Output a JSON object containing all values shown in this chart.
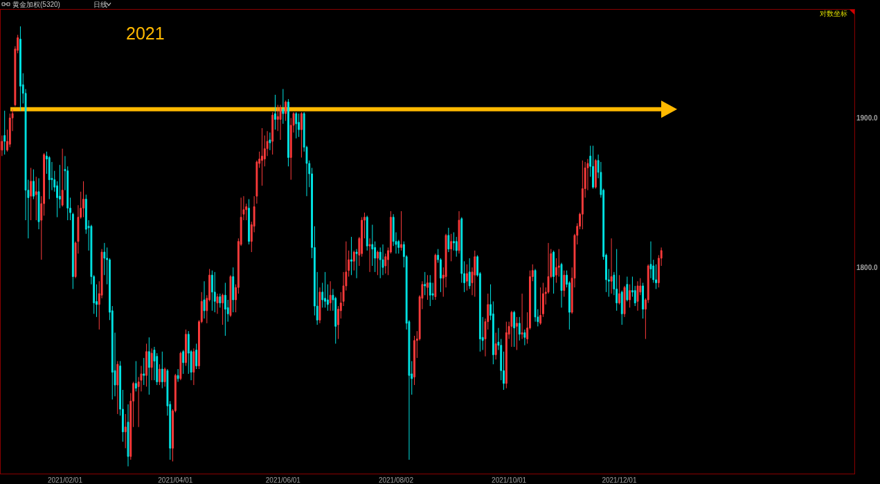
{
  "chart_data": {
    "type": "candlestick",
    "title": "黄金加权(5320)",
    "subtitle": "日线",
    "annotations": [
      "2021",
      "对数坐标"
    ],
    "log": true,
    "ylim": [
      1670.6,
      1975.9
    ],
    "yticks": [
      {
        "value": 1800,
        "label": "1800.0"
      },
      {
        "value": 1900,
        "label": "1900.0"
      }
    ],
    "ref_lines": [
      {
        "axis": "y",
        "value": 1906,
        "color": "#ffb900"
      }
    ],
    "categories": [
      null,
      null,
      null,
      null,
      null,
      null,
      null,
      null,
      null,
      null,
      null,
      null,
      null,
      null,
      null,
      null,
      null,
      null,
      null,
      null,
      null,
      null,
      null,
      null,
      "2021/02/01",
      null,
      null,
      null,
      null,
      null,
      null,
      null,
      null,
      null,
      null,
      null,
      null,
      null,
      null,
      null,
      null,
      null,
      null,
      null,
      null,
      null,
      null,
      null,
      null,
      null,
      null,
      null,
      null,
      null,
      null,
      null,
      null,
      null,
      null,
      null,
      null,
      null,
      null,
      null,
      null,
      null,
      "2021/04/01",
      null,
      null,
      null,
      null,
      null,
      null,
      null,
      null,
      null,
      null,
      null,
      null,
      null,
      null,
      null,
      null,
      null,
      null,
      null,
      null,
      null,
      null,
      null,
      null,
      null,
      null,
      null,
      null,
      null,
      null,
      null,
      null,
      null,
      null,
      null,
      null,
      null,
      null,
      null,
      null,
      "2021/06/01",
      null,
      null,
      null,
      null,
      null,
      null,
      null,
      null,
      null,
      null,
      null,
      null,
      null,
      null,
      null,
      null,
      null,
      null,
      null,
      null,
      null,
      null,
      null,
      null,
      null,
      null,
      null,
      null,
      null,
      null,
      null,
      null,
      null,
      null,
      null,
      null,
      null,
      null,
      null,
      null,
      null,
      null,
      "2021/08/02",
      null,
      null,
      null,
      null,
      null,
      null,
      null,
      null,
      null,
      null,
      null,
      null,
      null,
      null,
      null,
      null,
      null,
      null,
      null,
      null,
      null,
      null,
      null,
      null,
      null,
      null,
      null,
      null,
      null,
      null,
      null,
      null,
      null,
      null,
      null,
      null,
      null,
      null,
      null,
      null,
      null,
      null,
      "2021/10/01",
      null,
      null,
      null,
      null,
      null,
      null,
      null,
      null,
      null,
      null,
      null,
      null,
      null,
      null,
      null,
      null,
      null,
      null,
      null,
      null,
      null,
      null,
      null,
      null,
      null,
      null,
      null,
      null,
      null,
      null,
      null,
      null,
      null,
      null,
      null,
      null,
      null,
      null,
      null,
      null,
      null,
      "2021/12/01",
      null,
      null,
      null,
      null,
      null,
      null,
      null,
      null,
      null,
      null,
      null,
      null,
      null,
      null,
      null,
      null,
      null,
      null,
      null,
      null,
      null,
      null,
      null,
      null,
      null,
      null,
      null,
      null,
      null,
      null,
      null,
      null,
      null,
      null,
      null,
      null,
      null,
      null,
      null,
      null,
      null,
      null,
      null,
      null,
      null,
      null,
      null,
      null,
      null,
      null,
      null,
      null,
      null,
      null,
      null,
      null,
      null,
      null,
      null,
      null,
      null,
      null,
      null,
      null,
      null,
      null,
      null,
      null,
      null,
      null,
      null,
      null,
      null,
      null,
      null,
      null,
      null,
      null,
      null,
      null,
      null,
      null,
      null,
      null,
      null,
      null,
      null,
      null,
      null
    ],
    "ohlc": [
      [
        1878,
        1888,
        1874,
        1884
      ],
      [
        1888,
        1905,
        1875,
        1884
      ],
      [
        1878,
        1892,
        1877,
        1884
      ],
      [
        1882,
        1903,
        1880,
        1900
      ],
      [
        1900,
        1906,
        1891,
        1903
      ],
      [
        1909,
        1950,
        1908,
        1948
      ],
      [
        1947,
        1958,
        1945,
        1956
      ],
      [
        1955,
        1964,
        1905,
        1922
      ],
      [
        1923,
        1931,
        1910,
        1917
      ],
      [
        1917,
        1920,
        1831,
        1851
      ],
      [
        1851,
        1858,
        1819,
        1846
      ],
      [
        1847,
        1866,
        1831,
        1857
      ],
      [
        1857,
        1865,
        1845,
        1847
      ],
      [
        1848,
        1860,
        1831,
        1850
      ],
      [
        1850,
        1859,
        1825,
        1830
      ],
      [
        1831,
        1847,
        1805,
        1842
      ],
      [
        1842,
        1876,
        1834,
        1875
      ],
      [
        1874,
        1877,
        1862,
        1872
      ],
      [
        1873,
        1874,
        1845,
        1858
      ],
      [
        1859,
        1870,
        1851,
        1858
      ],
      [
        1858,
        1864,
        1850,
        1853
      ],
      [
        1854,
        1857,
        1833,
        1846
      ],
      [
        1847,
        1868,
        1839,
        1845
      ],
      [
        1841,
        1879,
        1840,
        1851
      ],
      [
        1865,
        1874,
        1851,
        1864
      ],
      [
        1864,
        1867,
        1831,
        1839
      ],
      [
        1839,
        1846,
        1831,
        1836
      ],
      [
        1835,
        1836,
        1786,
        1794
      ],
      [
        1794,
        1817,
        1793,
        1816
      ],
      [
        1817,
        1841,
        1809,
        1833
      ],
      [
        1833,
        1850,
        1832,
        1839
      ],
      [
        1839,
        1857,
        1833,
        1845
      ],
      [
        1845,
        1848,
        1822,
        1825
      ],
      [
        1827,
        1831,
        1811,
        1826
      ],
      [
        1827,
        1828,
        1789,
        1794
      ],
      [
        1794,
        1795,
        1770,
        1777
      ],
      [
        1778,
        1789,
        1768,
        1776
      ],
      [
        1776,
        1791,
        1760,
        1783
      ],
      [
        1782,
        1812,
        1780,
        1810
      ],
      [
        1810,
        1816,
        1795,
        1806
      ],
      [
        1806,
        1813,
        1789,
        1805
      ],
      [
        1805,
        1806,
        1766,
        1771
      ],
      [
        1772,
        1775,
        1716,
        1733
      ],
      [
        1734,
        1758,
        1718,
        1725
      ],
      [
        1725,
        1740,
        1707,
        1738
      ],
      [
        1737,
        1740,
        1706,
        1710
      ],
      [
        1710,
        1722,
        1690,
        1696
      ],
      [
        1696,
        1707,
        1686,
        1699
      ],
      [
        1702,
        1713,
        1675,
        1681
      ],
      [
        1681,
        1720,
        1679,
        1715
      ],
      [
        1715,
        1727,
        1699,
        1726
      ],
      [
        1726,
        1740,
        1721,
        1723
      ],
      [
        1724,
        1730,
        1699,
        1727
      ],
      [
        1728,
        1737,
        1721,
        1732
      ],
      [
        1732,
        1742,
        1725,
        1731
      ],
      [
        1731,
        1751,
        1724,
        1746
      ],
      [
        1746,
        1755,
        1719,
        1736
      ],
      [
        1736,
        1748,
        1728,
        1745
      ],
      [
        1747,
        1749,
        1728,
        1740
      ],
      [
        1743,
        1745,
        1725,
        1727
      ],
      [
        1727,
        1738,
        1725,
        1735
      ],
      [
        1735,
        1746,
        1723,
        1727
      ],
      [
        1727,
        1736,
        1724,
        1735
      ],
      [
        1734,
        1735,
        1706,
        1712
      ],
      [
        1713,
        1715,
        1679,
        1686
      ],
      [
        1686,
        1710,
        1678,
        1709
      ],
      [
        1709,
        1732,
        1708,
        1731
      ],
      [
        1731,
        1735,
        1727,
        1729
      ],
      [
        1729,
        1746,
        1728,
        1745
      ],
      [
        1746,
        1747,
        1732,
        1739
      ],
      [
        1739,
        1760,
        1737,
        1757
      ],
      [
        1757,
        1759,
        1732,
        1745
      ],
      [
        1746,
        1747,
        1728,
        1733
      ],
      [
        1733,
        1748,
        1725,
        1746
      ],
      [
        1747,
        1751,
        1735,
        1737
      ],
      [
        1737,
        1766,
        1735,
        1765
      ],
      [
        1765,
        1784,
        1764,
        1778
      ],
      [
        1779,
        1791,
        1767,
        1772
      ],
      [
        1772,
        1782,
        1764,
        1780
      ],
      [
        1779,
        1799,
        1778,
        1795
      ],
      [
        1795,
        1798,
        1772,
        1784
      ],
      [
        1784,
        1797,
        1771,
        1778
      ],
      [
        1777,
        1783,
        1770,
        1781
      ],
      [
        1781,
        1783,
        1774,
        1777
      ],
      [
        1777,
        1783,
        1763,
        1782
      ],
      [
        1782,
        1790,
        1756,
        1773
      ],
      [
        1774,
        1779,
        1765,
        1770
      ],
      [
        1769,
        1795,
        1768,
        1794
      ],
      [
        1794,
        1800,
        1771,
        1779
      ],
      [
        1779,
        1789,
        1771,
        1787
      ],
      [
        1787,
        1819,
        1783,
        1817
      ],
      [
        1815,
        1846,
        1814,
        1833
      ],
      [
        1835,
        1847,
        1831,
        1838
      ],
      [
        1838,
        1842,
        1831,
        1840
      ],
      [
        1839,
        1845,
        1815,
        1817
      ],
      [
        1817,
        1830,
        1810,
        1828
      ],
      [
        1827,
        1847,
        1823,
        1840
      ],
      [
        1847,
        1871,
        1842,
        1870
      ],
      [
        1869,
        1877,
        1866,
        1872
      ],
      [
        1871,
        1893,
        1854,
        1874
      ],
      [
        1872,
        1888,
        1867,
        1879
      ],
      [
        1879,
        1891,
        1874,
        1884
      ],
      [
        1885,
        1890,
        1878,
        1883
      ],
      [
        1884,
        1904,
        1875,
        1902
      ],
      [
        1903,
        1916,
        1892,
        1899
      ],
      [
        1899,
        1909,
        1891,
        1901
      ],
      [
        1899,
        1909,
        1885,
        1907
      ],
      [
        1906,
        1920,
        1896,
        1903
      ],
      [
        1903,
        1912,
        1898,
        1911
      ],
      [
        1911,
        1913,
        1867,
        1873
      ],
      [
        1873,
        1900,
        1858,
        1895
      ],
      [
        1895,
        1904,
        1890,
        1903
      ],
      [
        1903,
        1904,
        1886,
        1896
      ],
      [
        1897,
        1903,
        1887,
        1892
      ],
      [
        1892,
        1904,
        1873,
        1903
      ],
      [
        1903,
        1904,
        1877,
        1880
      ],
      [
        1880,
        1881,
        1847,
        1869
      ],
      [
        1869,
        1871,
        1853,
        1862
      ],
      [
        1862,
        1866,
        1806,
        1813
      ],
      [
        1813,
        1827,
        1769,
        1775
      ],
      [
        1775,
        1797,
        1763,
        1766
      ],
      [
        1766,
        1787,
        1764,
        1784
      ],
      [
        1784,
        1790,
        1774,
        1779
      ],
      [
        1780,
        1797,
        1774,
        1778
      ],
      [
        1779,
        1789,
        1772,
        1776
      ],
      [
        1777,
        1791,
        1772,
        1782
      ],
      [
        1782,
        1786,
        1772,
        1779
      ],
      [
        1780,
        1781,
        1751,
        1762
      ],
      [
        1763,
        1775,
        1754,
        1773
      ],
      [
        1772,
        1784,
        1767,
        1777
      ],
      [
        1778,
        1797,
        1775,
        1788
      ],
      [
        1788,
        1817,
        1785,
        1797
      ],
      [
        1798,
        1811,
        1794,
        1805
      ],
      [
        1805,
        1820,
        1795,
        1804
      ],
      [
        1804,
        1811,
        1798,
        1810
      ],
      [
        1810,
        1812,
        1793,
        1809
      ],
      [
        1808,
        1820,
        1801,
        1819
      ],
      [
        1809,
        1833,
        1807,
        1831
      ],
      [
        1831,
        1836,
        1819,
        1833
      ],
      [
        1833,
        1834,
        1811,
        1814
      ],
      [
        1814,
        1819,
        1797,
        1815
      ],
      [
        1815,
        1828,
        1801,
        1812
      ],
      [
        1813,
        1817,
        1797,
        1806
      ],
      [
        1806,
        1811,
        1795,
        1810
      ],
      [
        1810,
        1813,
        1793,
        1805
      ],
      [
        1805,
        1815,
        1795,
        1800
      ],
      [
        1801,
        1809,
        1796,
        1807
      ],
      [
        1805,
        1813,
        1795,
        1811
      ],
      [
        1810,
        1837,
        1809,
        1833
      ],
      [
        1833,
        1835,
        1814,
        1817
      ],
      [
        1817,
        1823,
        1809,
        1815
      ],
      [
        1817,
        1818,
        1809,
        1813
      ],
      [
        1813,
        1837,
        1811,
        1815
      ],
      [
        1815,
        1817,
        1800,
        1807
      ],
      [
        1807,
        1808,
        1760,
        1764
      ],
      [
        1765,
        1766,
        1679,
        1731
      ],
      [
        1732,
        1740,
        1719,
        1729
      ],
      [
        1730,
        1756,
        1725,
        1753
      ],
      [
        1753,
        1759,
        1742,
        1754
      ],
      [
        1754,
        1782,
        1753,
        1781
      ],
      [
        1780,
        1791,
        1773,
        1789
      ],
      [
        1789,
        1797,
        1782,
        1788
      ],
      [
        1787,
        1795,
        1779,
        1790
      ],
      [
        1790,
        1795,
        1775,
        1782
      ],
      [
        1783,
        1790,
        1779,
        1782
      ],
      [
        1781,
        1809,
        1779,
        1808
      ],
      [
        1808,
        1812,
        1803,
        1805
      ],
      [
        1805,
        1806,
        1784,
        1793
      ],
      [
        1793,
        1800,
        1781,
        1795
      ],
      [
        1794,
        1822,
        1787,
        1821
      ],
      [
        1821,
        1826,
        1810,
        1812
      ],
      [
        1812,
        1822,
        1804,
        1817
      ],
      [
        1817,
        1823,
        1811,
        1816
      ],
      [
        1817,
        1820,
        1807,
        1811
      ],
      [
        1811,
        1837,
        1809,
        1831
      ],
      [
        1832,
        1833,
        1790,
        1796
      ],
      [
        1796,
        1804,
        1784,
        1790
      ],
      [
        1791,
        1802,
        1785,
        1796
      ],
      [
        1797,
        1806,
        1786,
        1788
      ],
      [
        1790,
        1800,
        1782,
        1797
      ],
      [
        1795,
        1811,
        1781,
        1807
      ],
      [
        1807,
        1808,
        1794,
        1795
      ],
      [
        1796,
        1797,
        1746,
        1754
      ],
      [
        1755,
        1768,
        1747,
        1753
      ],
      [
        1754,
        1767,
        1743,
        1765
      ],
      [
        1765,
        1783,
        1760,
        1776
      ],
      [
        1776,
        1789,
        1766,
        1769
      ],
      [
        1770,
        1778,
        1738,
        1744
      ],
      [
        1744,
        1758,
        1741,
        1751
      ],
      [
        1752,
        1761,
        1747,
        1750
      ],
      [
        1750,
        1754,
        1728,
        1734
      ],
      [
        1734,
        1746,
        1722,
        1726
      ],
      [
        1726,
        1765,
        1723,
        1758
      ],
      [
        1757,
        1765,
        1754,
        1762
      ],
      [
        1762,
        1772,
        1749,
        1771
      ],
      [
        1771,
        1772,
        1749,
        1761
      ],
      [
        1762,
        1768,
        1747,
        1764
      ],
      [
        1764,
        1768,
        1753,
        1757
      ],
      [
        1757,
        1783,
        1754,
        1758
      ],
      [
        1758,
        1760,
        1750,
        1755
      ],
      [
        1754,
        1771,
        1751,
        1761
      ],
      [
        1761,
        1798,
        1760,
        1794
      ],
      [
        1794,
        1802,
        1791,
        1798
      ],
      [
        1798,
        1799,
        1765,
        1768
      ],
      [
        1768,
        1773,
        1762,
        1765
      ],
      [
        1764,
        1787,
        1763,
        1769
      ],
      [
        1770,
        1790,
        1768,
        1783
      ],
      [
        1783,
        1787,
        1776,
        1784
      ],
      [
        1784,
        1816,
        1783,
        1794
      ],
      [
        1794,
        1812,
        1793,
        1809
      ],
      [
        1810,
        1811,
        1783,
        1794
      ],
      [
        1795,
        1806,
        1790,
        1800
      ],
      [
        1800,
        1812,
        1794,
        1801
      ],
      [
        1802,
        1803,
        1774,
        1785
      ],
      [
        1785,
        1798,
        1781,
        1795
      ],
      [
        1795,
        1798,
        1787,
        1789
      ],
      [
        1790,
        1791,
        1760,
        1771
      ],
      [
        1771,
        1800,
        1770,
        1793
      ],
      [
        1793,
        1822,
        1787,
        1821
      ],
      [
        1821,
        1829,
        1815,
        1827
      ],
      [
        1827,
        1836,
        1825,
        1835
      ],
      [
        1835,
        1871,
        1825,
        1852
      ],
      [
        1852,
        1870,
        1846,
        1866
      ],
      [
        1866,
        1872,
        1851,
        1869
      ],
      [
        1874,
        1881,
        1860,
        1867
      ],
      [
        1867,
        1881,
        1852,
        1853
      ],
      [
        1853,
        1872,
        1852,
        1871
      ],
      [
        1871,
        1875,
        1859,
        1863
      ],
      [
        1863,
        1870,
        1846,
        1848
      ],
      [
        1851,
        1852,
        1805,
        1807
      ],
      [
        1808,
        1809,
        1784,
        1792
      ],
      [
        1792,
        1799,
        1781,
        1791
      ],
      [
        1791,
        1819,
        1783,
        1794
      ],
      [
        1795,
        1797,
        1782,
        1786
      ],
      [
        1786,
        1812,
        1772,
        1777
      ],
      [
        1777,
        1795,
        1776,
        1783
      ],
      [
        1784,
        1785,
        1763,
        1770
      ],
      [
        1770,
        1788,
        1768,
        1787
      ],
      [
        1789,
        1794,
        1778,
        1779
      ],
      [
        1779,
        1789,
        1774,
        1785
      ],
      [
        1785,
        1794,
        1781,
        1784
      ],
      [
        1785,
        1788,
        1775,
        1777
      ],
      [
        1778,
        1791,
        1772,
        1788
      ],
      [
        1784,
        1793,
        1782,
        1788
      ],
      [
        1788,
        1790,
        1767,
        1773
      ],
      [
        1773,
        1780,
        1754,
        1779
      ],
      [
        1779,
        1802,
        1777,
        1801
      ],
      [
        1802,
        1817,
        1793,
        1799
      ],
      [
        1801,
        1805,
        1790,
        1792
      ],
      [
        1792,
        1802,
        1786,
        1790
      ],
      [
        1790,
        1808,
        1787,
        1806
      ],
      [
        1806,
        1813,
        1801,
        1811
      ],
      null,
      null,
      null,
      null,
      null,
      null,
      null,
      null,
      null,
      null,
      null,
      null,
      null,
      null,
      null,
      null,
      null,
      null,
      null,
      null,
      null,
      null,
      null,
      null,
      null,
      null,
      null,
      null,
      null,
      null,
      null,
      null,
      null,
      null,
      null,
      null,
      null,
      null,
      null,
      null,
      null,
      null,
      null,
      null,
      null,
      null,
      null,
      null,
      null,
      null,
      null,
      null,
      null,
      null,
      null,
      null,
      null,
      null,
      null,
      null,
      null,
      null,
      null,
      null,
      null,
      null,
      null,
      null,
      null,
      null,
      null,
      null,
      null
    ],
    "colors": [
      "#ff3c3c",
      "#00e5e5",
      "#ff3c3c",
      "#ff3c3c",
      "#ff3c3c",
      "#ff3c3c",
      "#ff3c3c",
      "#00e5e5",
      "#00e5e5",
      "#00e5e5",
      "#00e5e5",
      "#ff3c3c",
      "#00e5e5",
      "#ff3c3c",
      "#00e5e5",
      "#ff3c3c",
      "#ff3c3c",
      "#00e5e5",
      "#00e5e5",
      "#00e5e5",
      "#00e5e5",
      "#00e5e5",
      "#00e5e5",
      "#ff3c3c",
      "#00e5e5",
      "#00e5e5",
      "#00e5e5",
      "#00e5e5",
      "#ff3c3c",
      "#ff3c3c",
      "#ff3c3c",
      "#ff3c3c",
      "#00e5e5",
      "#00e5e5",
      "#00e5e5",
      "#00e5e5",
      "#00e5e5",
      "#ff3c3c",
      "#ff3c3c",
      "#00e5e5",
      "#00e5e5",
      "#00e5e5",
      "#00e5e5",
      "#00e5e5",
      "#ff3c3c",
      "#00e5e5",
      "#00e5e5",
      "#ff3c3c",
      "#00e5e5",
      "#ff3c3c",
      "#ff3c3c",
      "#00e5e5",
      "#ff3c3c",
      "#ff3c3c",
      "#00e5e5",
      "#ff3c3c",
      "#00e5e5",
      "#ff3c3c",
      "#00e5e5",
      "#00e5e5",
      "#ff3c3c",
      "#00e5e5",
      "#ff3c3c",
      "#00e5e5",
      "#00e5e5",
      "#ff3c3c",
      "#ff3c3c",
      "#00e5e5",
      "#ff3c3c",
      "#00e5e5",
      "#ff3c3c",
      "#00e5e5",
      "#00e5e5",
      "#ff3c3c",
      "#00e5e5",
      "#ff3c3c",
      "#ff3c3c",
      "#00e5e5",
      "#ff3c3c",
      "#ff3c3c",
      "#00e5e5",
      "#00e5e5",
      "#ff3c3c",
      "#00e5e5",
      "#ff3c3c",
      "#00e5e5",
      "#00e5e5",
      "#ff3c3c",
      "#00e5e5",
      "#ff3c3c",
      "#ff3c3c",
      "#ff3c3c",
      "#ff3c3c",
      "#ff3c3c",
      "#00e5e5",
      "#ff3c3c",
      "#ff3c3c",
      "#ff3c3c",
      "#ff3c3c",
      "#ff3c3c",
      "#ff3c3c",
      "#ff3c3c",
      "#00e5e5",
      "#ff3c3c",
      "#00e5e5",
      "#ff3c3c",
      "#ff3c3c",
      "#00e5e5",
      "#ff3c3c",
      "#00e5e5",
      "#ff3c3c",
      "#ff3c3c",
      "#00e5e5",
      "#00e5e5",
      "#ff3c3c",
      "#00e5e5",
      "#00e5e5",
      "#00e5e5",
      "#00e5e5",
      "#00e5e5",
      "#00e5e5",
      "#ff3c3c",
      "#00e5e5",
      "#00e5e5",
      "#00e5e5",
      "#ff3c3c",
      "#00e5e5",
      "#00e5e5",
      "#ff3c3c",
      "#ff3c3c",
      "#ff3c3c",
      "#ff3c3c",
      "#ff3c3c",
      "#00e5e5",
      "#ff3c3c",
      "#00e5e5",
      "#ff3c3c",
      "#ff3c3c",
      "#ff3c3c",
      "#00e5e5",
      "#ff3c3c",
      "#00e5e5",
      "#00e5e5",
      "#ff3c3c",
      "#00e5e5",
      "#00e5e5",
      "#ff3c3c",
      "#ff3c3c",
      "#ff3c3c",
      "#00e5e5",
      "#00e5e5",
      "#00e5e5",
      "#ff3c3c",
      "#00e5e5",
      "#00e5e5",
      "#00e5e5",
      "#00e5e5",
      "#ff3c3c",
      "#ff3c3c",
      "#ff3c3c",
      "#ff3c3c",
      "#00e5e5",
      "#ff3c3c",
      "#00e5e5",
      "#00e5e5",
      "#ff3c3c",
      "#00e5e5",
      "#00e5e5",
      "#ff3c3c",
      "#ff3c3c",
      "#00e5e5",
      "#ff3c3c",
      "#00e5e5",
      "#00e5e5",
      "#ff3c3c",
      "#00e5e5",
      "#00e5e5",
      "#ff3c3c",
      "#00e5e5",
      "#ff3c3c",
      "#ff3c3c",
      "#00e5e5",
      "#00e5e5",
      "#00e5e5",
      "#ff3c3c",
      "#ff3c3c",
      "#00e5e5",
      "#00e5e5",
      "#ff3c3c",
      "#00e5e5",
      "#00e5e5",
      "#00e5e5",
      "#ff3c3c",
      "#ff3c3c",
      "#ff3c3c",
      "#00e5e5",
      "#ff3c3c",
      "#00e5e5",
      "#ff3c3c",
      "#00e5e5",
      "#ff3c3c",
      "#ff3c3c",
      "#ff3c3c",
      "#00e5e5",
      "#00e5e5",
      "#ff3c3c",
      "#ff3c3c",
      "#ff3c3c",
      "#ff3c3c",
      "#ff3c3c",
      "#00e5e5",
      "#ff3c3c",
      "#ff3c3c",
      "#00e5e5",
      "#ff3c3c",
      "#00e5e5",
      "#00e5e5",
      "#ff3c3c",
      "#ff3c3c",
      "#ff3c3c",
      "#ff3c3c",
      "#ff3c3c",
      "#ff3c3c",
      "#ff3c3c",
      "#00e5e5",
      "#00e5e5",
      "#ff3c3c",
      "#00e5e5",
      "#00e5e5",
      "#00e5e5",
      "#00e5e5",
      "#00e5e5",
      "#ff3c3c",
      "#00e5e5",
      "#00e5e5",
      "#ff3c3c",
      "#00e5e5",
      "#ff3c3c",
      "#00e5e5",
      "#ff3c3c",
      "#00e5e5",
      "#00e5e5",
      "#ff3c3c",
      "#ff3c3c",
      "#00e5e5",
      "#ff3c3c",
      "#ff3c3c",
      "#00e5e5",
      "#00e5e5",
      "#00e5e5",
      "#ff3c3c",
      "#ff3c3c",
      null,
      null,
      null,
      null,
      null,
      null,
      null,
      null,
      null,
      null,
      null,
      null,
      null,
      null,
      null,
      null,
      null,
      null,
      null,
      null,
      null,
      null,
      null,
      null,
      null,
      null,
      null,
      null,
      null,
      null,
      null,
      null,
      null,
      null,
      null,
      null,
      null,
      null,
      null,
      null,
      null,
      null,
      null,
      null,
      null,
      null,
      null,
      null,
      null,
      null,
      null,
      null,
      null,
      null,
      null,
      null,
      null,
      null,
      null,
      null,
      null,
      null,
      null,
      null,
      null,
      null,
      null,
      null,
      null,
      null,
      null,
      null,
      null
    ]
  }
}
